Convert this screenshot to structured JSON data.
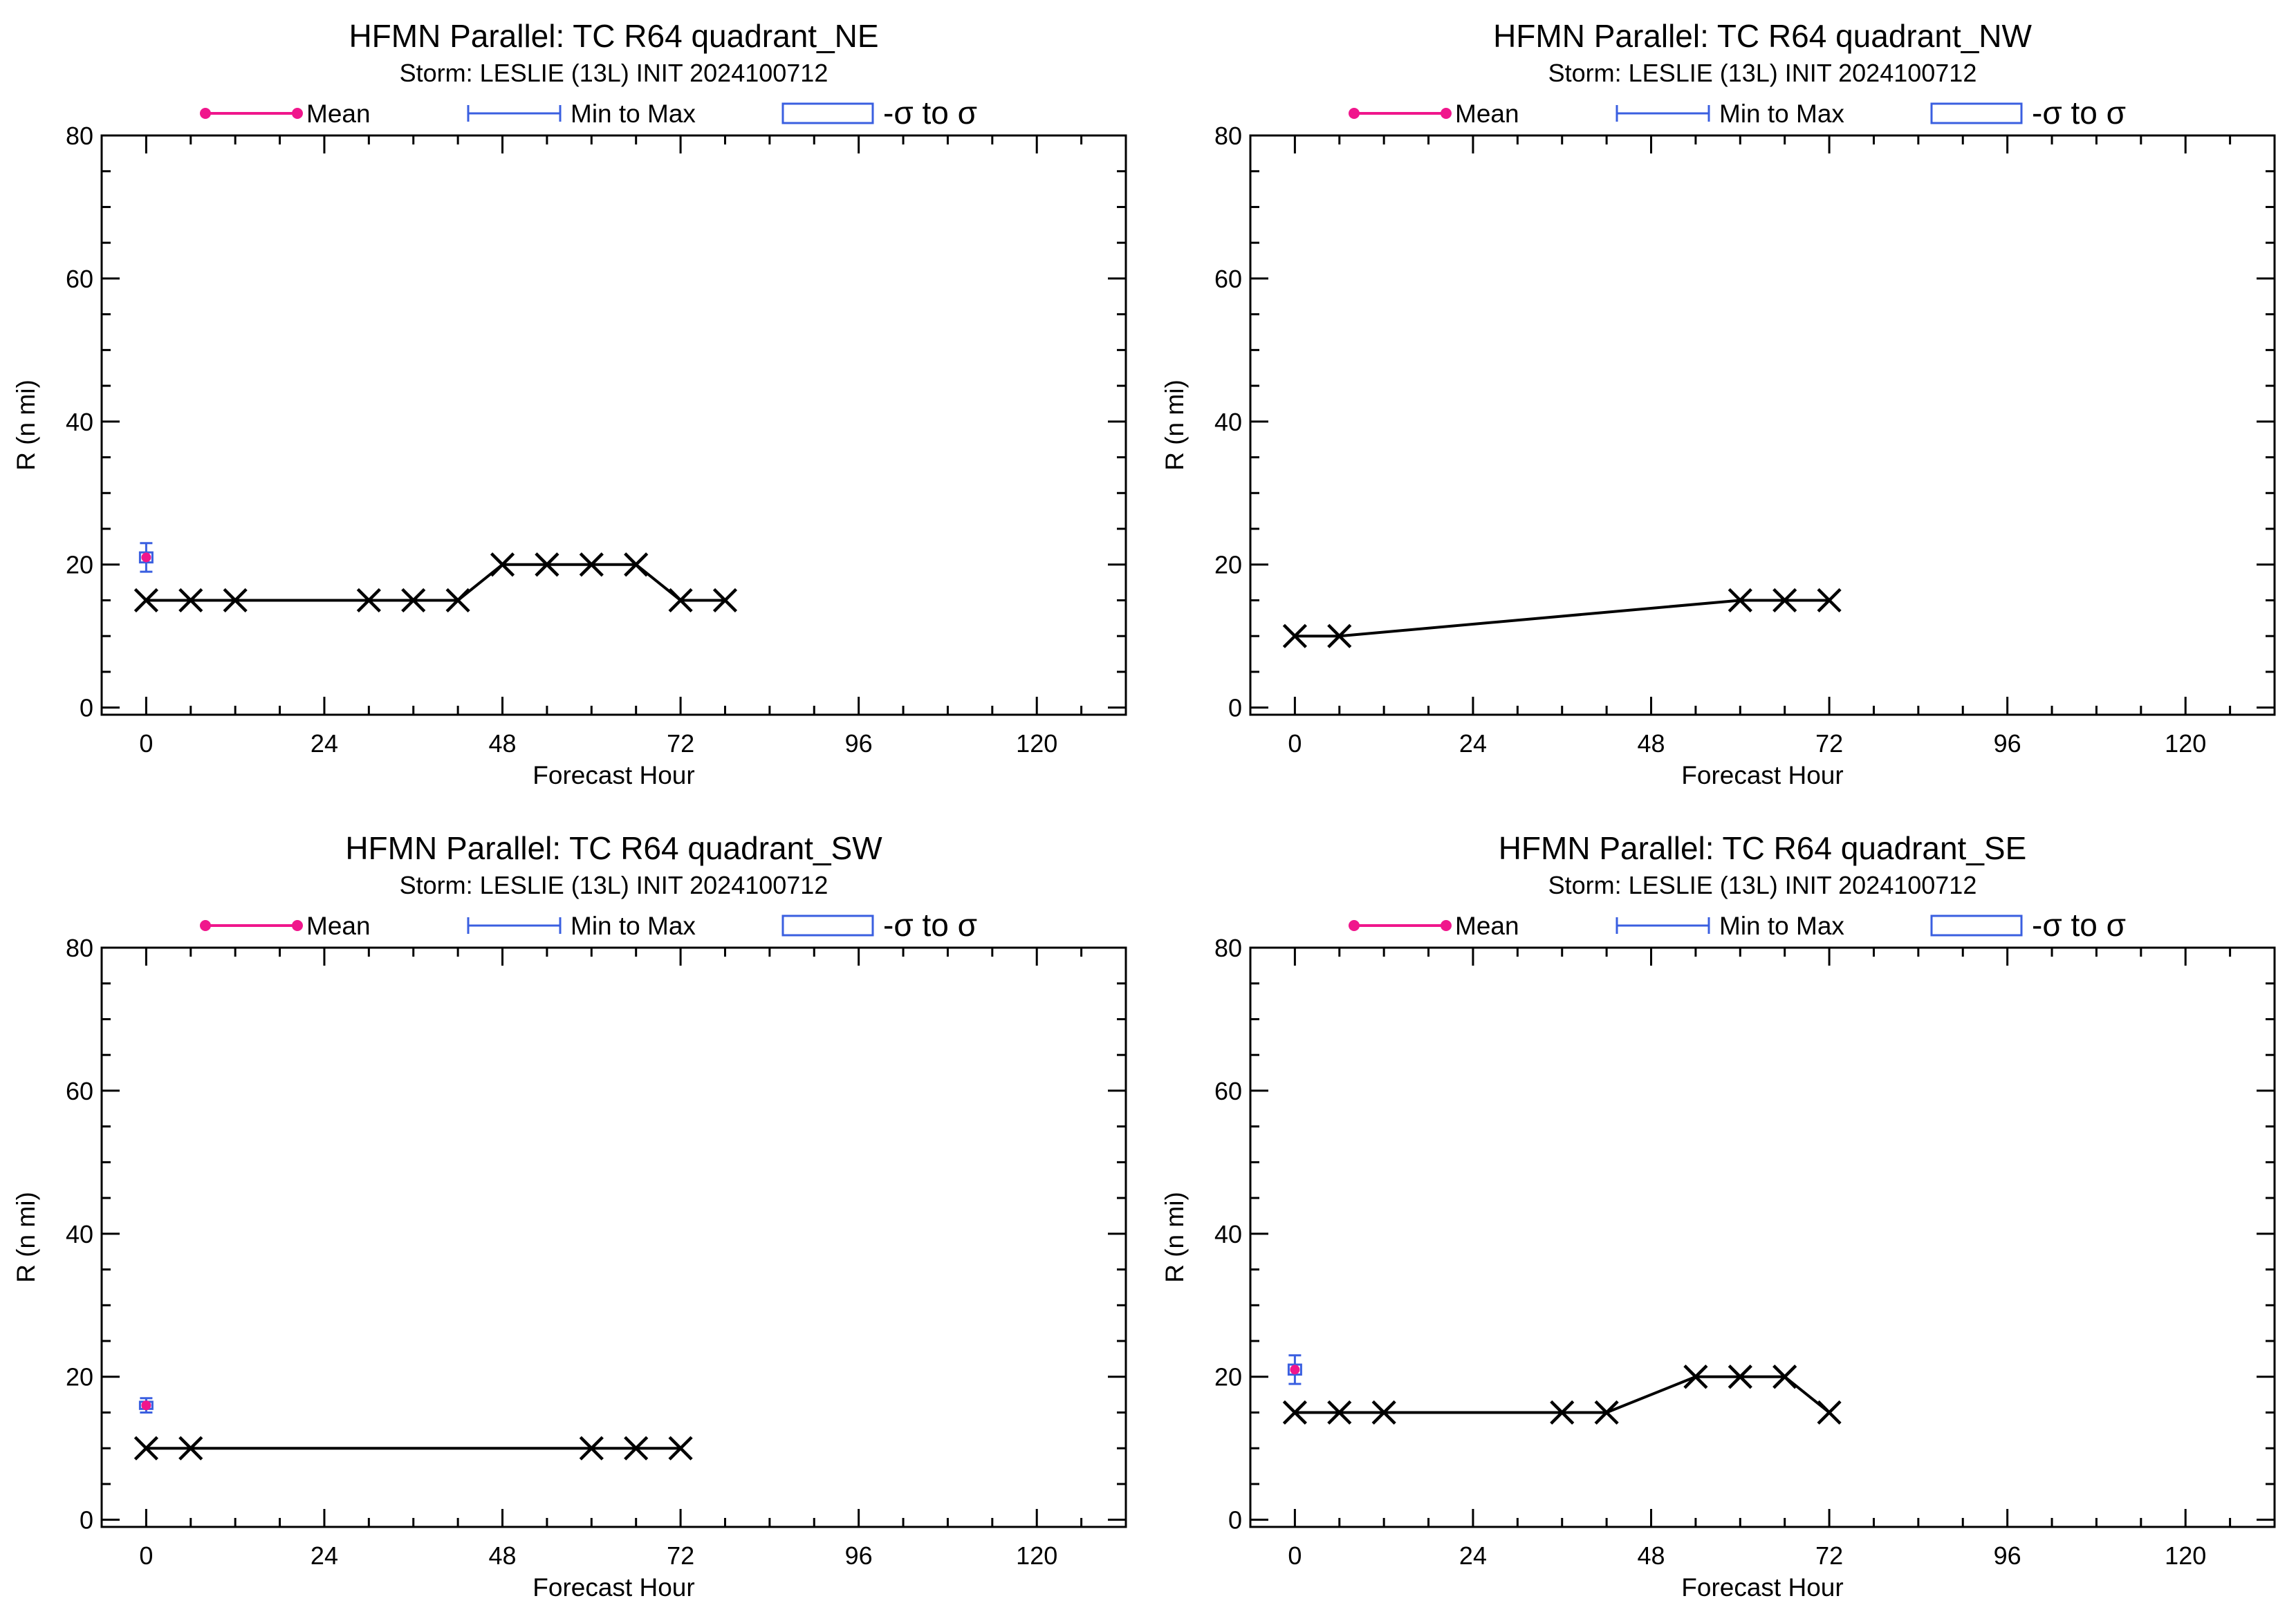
{
  "colors": {
    "mean": "#f0168c",
    "range": "#3a5fe0",
    "sigma": "#3a5fe0",
    "track": "#000000",
    "axes": "#000000",
    "background": "#ffffff"
  },
  "legend": {
    "mean_label": "Mean",
    "range_label": "Min to Max",
    "sigma_label": "-σ to σ"
  },
  "chart_data": [
    {
      "type": "line",
      "title": "HFMN Parallel: TC  R64 quadrant_NE",
      "subtitle": "Storm: LESLIE (13L) INIT 2024100712",
      "xlabel": "Forecast Hour",
      "ylabel": "R (n mi)",
      "xlim": [
        -6,
        132
      ],
      "ylim": [
        -1,
        80
      ],
      "xticks": [
        "0",
        "24",
        "48",
        "72",
        "96",
        "120"
      ],
      "yticks": [
        "0",
        "20",
        "40",
        "60",
        "80"
      ],
      "series": [
        {
          "x": [
            0,
            6,
            12,
            30,
            36,
            42,
            48,
            54,
            60,
            66,
            72,
            78
          ],
          "values": [
            15,
            15,
            15,
            15,
            15,
            15,
            20,
            20,
            20,
            20,
            15,
            15
          ]
        }
      ],
      "stats": {
        "x": 0,
        "mean": 21,
        "min": 19,
        "max": 23,
        "sigma_low": 20.3,
        "sigma_high": 21.7
      }
    },
    {
      "type": "line",
      "title": "HFMN Parallel: TC  R64 quadrant_NW",
      "subtitle": "Storm: LESLIE (13L) INIT 2024100712",
      "xlabel": "Forecast Hour",
      "ylabel": "R (n mi)",
      "xlim": [
        -6,
        132
      ],
      "ylim": [
        -1,
        80
      ],
      "xticks": [
        "0",
        "24",
        "48",
        "72",
        "96",
        "120"
      ],
      "yticks": [
        "0",
        "20",
        "40",
        "60",
        "80"
      ],
      "series": [
        {
          "x": [
            0,
            6,
            60,
            66,
            72
          ],
          "values": [
            10,
            10,
            15,
            15,
            15
          ]
        }
      ],
      "stats": null
    },
    {
      "type": "line",
      "title": "HFMN Parallel: TC  R64 quadrant_SW",
      "subtitle": "Storm: LESLIE (13L) INIT 2024100712",
      "xlabel": "Forecast Hour",
      "ylabel": "R (n mi)",
      "xlim": [
        -6,
        132
      ],
      "ylim": [
        -1,
        80
      ],
      "xticks": [
        "0",
        "24",
        "48",
        "72",
        "96",
        "120"
      ],
      "yticks": [
        "0",
        "20",
        "40",
        "60",
        "80"
      ],
      "series": [
        {
          "x": [
            0,
            6,
            60,
            66,
            72
          ],
          "values": [
            10,
            10,
            10,
            10,
            10
          ]
        }
      ],
      "stats": {
        "x": 0,
        "mean": 16,
        "min": 15,
        "max": 17,
        "sigma_low": 15.5,
        "sigma_high": 16.5
      }
    },
    {
      "type": "line",
      "title": "HFMN Parallel: TC  R64 quadrant_SE",
      "subtitle": "Storm: LESLIE (13L) INIT 2024100712",
      "xlabel": "Forecast Hour",
      "ylabel": "R (n mi)",
      "xlim": [
        -6,
        132
      ],
      "ylim": [
        -1,
        80
      ],
      "xticks": [
        "0",
        "24",
        "48",
        "72",
        "96",
        "120"
      ],
      "yticks": [
        "0",
        "20",
        "40",
        "60",
        "80"
      ],
      "series": [
        {
          "x": [
            0,
            6,
            12,
            36,
            42,
            54,
            60,
            66,
            72
          ],
          "values": [
            15,
            15,
            15,
            15,
            15,
            20,
            20,
            20,
            15
          ]
        }
      ],
      "stats": {
        "x": 0,
        "mean": 21,
        "min": 19,
        "max": 23,
        "sigma_low": 20.3,
        "sigma_high": 21.7
      }
    }
  ]
}
